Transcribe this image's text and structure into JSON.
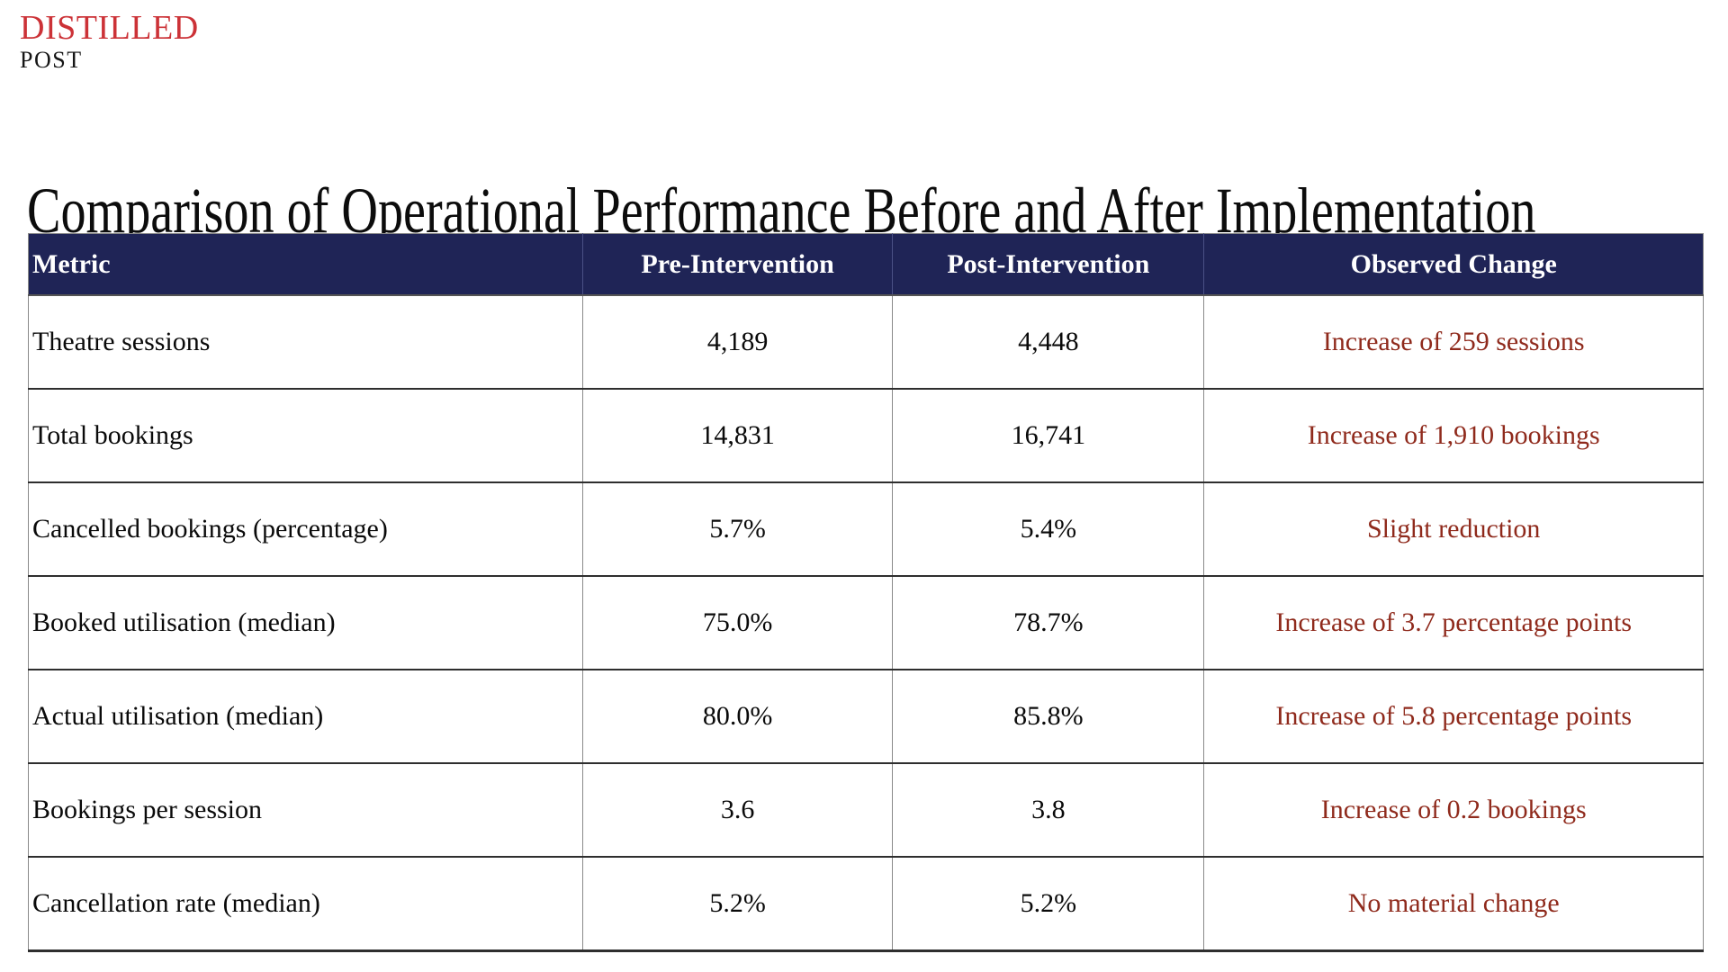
{
  "brand": {
    "name_top": "DISTILLED",
    "name_bottom": "POST",
    "accent_color": "#cc3237"
  },
  "page": {
    "title": "Comparison of Operational Performance Before and After Implementation"
  },
  "table": {
    "header_bg_color": "#1f2456",
    "change_text_color": "#8f2a1c",
    "columns": [
      "Metric",
      "Pre-Intervention",
      "Post-Intervention",
      "Observed Change"
    ],
    "rows": [
      {
        "metric": "Theatre sessions",
        "pre": "4,189",
        "post": "4,448",
        "change": "Increase of 259 sessions"
      },
      {
        "metric": "Total bookings",
        "pre": "14,831",
        "post": "16,741",
        "change": "Increase of 1,910 bookings"
      },
      {
        "metric": "Cancelled bookings (percentage)",
        "pre": "5.7%",
        "post": "5.4%",
        "change": "Slight reduction"
      },
      {
        "metric": "Booked utilisation (median)",
        "pre": "75.0%",
        "post": "78.7%",
        "change": "Increase of 3.7 percentage points"
      },
      {
        "metric": "Actual utilisation (median)",
        "pre": "80.0%",
        "post": "85.8%",
        "change": "Increase of 5.8 percentage points"
      },
      {
        "metric": "Bookings per session",
        "pre": "3.6",
        "post": "3.8",
        "change": "Increase of 0.2 bookings"
      },
      {
        "metric": "Cancellation rate (median)",
        "pre": "5.2%",
        "post": "5.2%",
        "change": "No material change"
      }
    ]
  }
}
